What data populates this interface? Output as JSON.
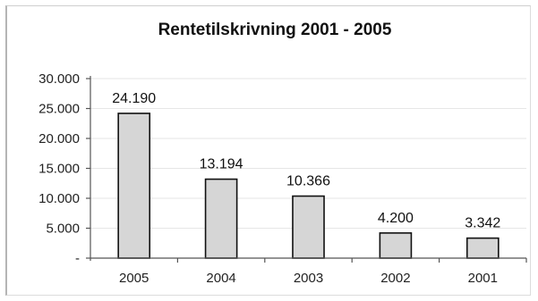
{
  "chart_data": {
    "type": "bar",
    "title": "Rentetilskrivning 2001 - 2005",
    "xlabel": "",
    "ylabel": "",
    "categories": [
      "2005",
      "2004",
      "2003",
      "2002",
      "2001"
    ],
    "values": [
      24190,
      13194,
      10366,
      4200,
      3342
    ],
    "data_labels": [
      "24.190",
      "13.194",
      "10.366",
      "4.200",
      "3.342"
    ],
    "ylim": [
      0,
      30000
    ],
    "y_ticks": [
      {
        "value": 30000,
        "label": "30.000"
      },
      {
        "value": 25000,
        "label": "25.000"
      },
      {
        "value": 20000,
        "label": "20.000"
      },
      {
        "value": 15000,
        "label": "15.000"
      },
      {
        "value": 10000,
        "label": "10.000"
      },
      {
        "value": 5000,
        "label": "5.000"
      },
      {
        "value": 0,
        "label": "-"
      }
    ],
    "grid": true,
    "legend": "none",
    "colors": {
      "bar_fill": "#d6d6d6",
      "bar_stroke": "#111111",
      "grid": "#e6e6e6"
    }
  }
}
